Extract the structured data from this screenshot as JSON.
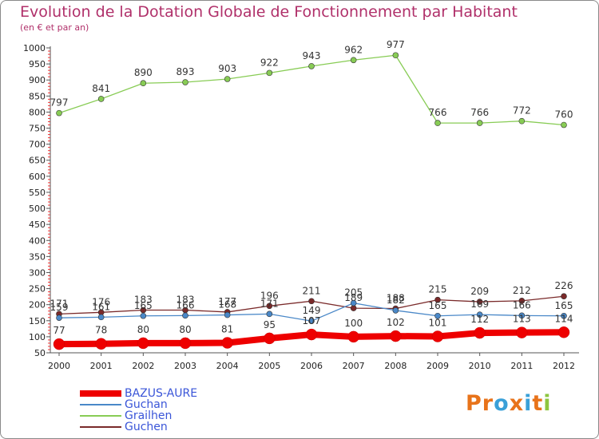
{
  "title": "Evolution de la Dotation Globale de Fonctionnement par Habitant",
  "subtitle": "(en € et par an)",
  "logo": {
    "letters": [
      "P",
      "r",
      "o",
      "x",
      "i",
      "t",
      "i"
    ],
    "colors": [
      "#e8731a",
      "#e8731a",
      "#3aa0d8",
      "#e8731a",
      "#3aa0d8",
      "#e8731a",
      "#8dc63f"
    ]
  },
  "chart_data": {
    "type": "line",
    "x": [
      "2000",
      "2001",
      "2002",
      "2003",
      "2004",
      "2005",
      "2006",
      "2007",
      "2008",
      "2009",
      "2010",
      "2011",
      "2012"
    ],
    "ylim": [
      50,
      1000
    ],
    "yticks": [
      "50",
      "100",
      "150",
      "200",
      "250",
      "300",
      "350",
      "400",
      "450",
      "500",
      "550",
      "600",
      "650",
      "700",
      "750",
      "800",
      "850",
      "900",
      "950",
      "1000"
    ],
    "grid": false,
    "legend_position": "bottom-left",
    "series": [
      {
        "name": "Grailhen",
        "color": "#88cc55",
        "values": [
          797,
          841,
          890,
          893,
          903,
          922,
          943,
          962,
          977,
          766,
          766,
          772,
          760
        ],
        "labels": [
          "797",
          "841",
          "890",
          "893",
          "903",
          "922",
          "943",
          "962",
          "977",
          "766",
          "766",
          "772",
          "760"
        ]
      },
      {
        "name": "Guchen",
        "color": "#7a2a2a",
        "values": [
          171,
          176,
          183,
          183,
          177,
          196,
          211,
          189,
          188,
          215,
          209,
          212,
          226
        ],
        "labels": [
          "171",
          "176",
          "183",
          "183",
          "177",
          "196",
          "211",
          "189",
          "188",
          "215",
          "209",
          "212",
          "226"
        ]
      },
      {
        "name": "Guchan",
        "color": "#4a88c8",
        "values": [
          159,
          161,
          165,
          166,
          168,
          171,
          149,
          205,
          182,
          165,
          169,
          166,
          165
        ],
        "labels": [
          "159",
          "161",
          "165",
          "166",
          "168",
          "171",
          "149",
          "205",
          "182",
          "165",
          "169",
          "166",
          "165"
        ]
      },
      {
        "name": "BAZUS-AURE",
        "color": "#ee0000",
        "values": [
          77,
          78,
          80,
          80,
          81,
          95,
          107,
          100,
          102,
          101,
          112,
          113,
          114
        ],
        "labels": [
          "77",
          "78",
          "80",
          "80",
          "81",
          "95",
          "107",
          "100",
          "102",
          "101",
          "112",
          "113",
          "114"
        ]
      }
    ],
    "legend": [
      "BAZUS-AURE",
      "Guchan",
      "Grailhen",
      "Guchen"
    ]
  }
}
